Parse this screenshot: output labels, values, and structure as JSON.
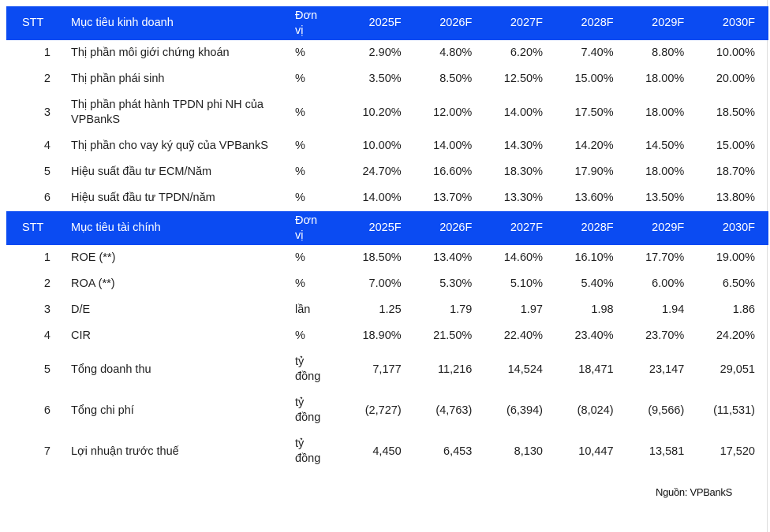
{
  "colors": {
    "header_bg": "#0b4bf2",
    "header_text": "#ffffff",
    "body_text": "#1f1f1f"
  },
  "source_note": "Nguồn: VPBankS",
  "tables": [
    {
      "id": "business-targets",
      "headers": {
        "stt": "STT",
        "target": "Mục tiêu kinh doanh",
        "unit": "Đơn vị",
        "years": [
          "2025F",
          "2026F",
          "2027F",
          "2028F",
          "2029F",
          "2030F"
        ]
      },
      "rows": [
        {
          "stt": "1",
          "target": "Thị phần môi giới chứng khoán",
          "unit": "%",
          "values": [
            "2.90%",
            "4.80%",
            "6.20%",
            "7.40%",
            "8.80%",
            "10.00%"
          ]
        },
        {
          "stt": "2",
          "target": "Thị phần phái sinh",
          "unit": "%",
          "values": [
            "3.50%",
            "8.50%",
            "12.50%",
            "15.00%",
            "18.00%",
            "20.00%"
          ]
        },
        {
          "stt": "3",
          "target": "Thị phần phát hành TPDN phi NH của VPBankS",
          "unit": "%",
          "values": [
            "10.20%",
            "12.00%",
            "14.00%",
            "17.50%",
            "18.00%",
            "18.50%"
          ]
        },
        {
          "stt": "4",
          "target": "Thị phần cho vay ký quỹ của VPBankS",
          "unit": "%",
          "values": [
            "10.00%",
            "14.00%",
            "14.30%",
            "14.20%",
            "14.50%",
            "15.00%"
          ]
        },
        {
          "stt": "5",
          "target": "Hiệu suất đầu tư ECM/Năm",
          "unit": "%",
          "values": [
            "24.70%",
            "16.60%",
            "18.30%",
            "17.90%",
            "18.00%",
            "18.70%"
          ]
        },
        {
          "stt": "6",
          "target": "Hiệu suất đầu tư TPDN/năm",
          "unit": "%",
          "values": [
            "14.00%",
            "13.70%",
            "13.30%",
            "13.60%",
            "13.50%",
            "13.80%"
          ]
        }
      ]
    },
    {
      "id": "financial-targets",
      "headers": {
        "stt": "STT",
        "target": "Mục tiêu tài chính",
        "unit": "Đơn vị",
        "years": [
          "2025F",
          "2026F",
          "2027F",
          "2028F",
          "2029F",
          "2030F"
        ]
      },
      "rows": [
        {
          "stt": "1",
          "target": "ROE (**)",
          "unit": "%",
          "values": [
            "18.50%",
            "13.40%",
            "14.60%",
            "16.10%",
            "17.70%",
            "19.00%"
          ]
        },
        {
          "stt": "2",
          "target": "ROA (**)",
          "unit": "%",
          "values": [
            "7.00%",
            "5.30%",
            "5.10%",
            "5.40%",
            "6.00%",
            "6.50%"
          ]
        },
        {
          "stt": "3",
          "target": "D/E",
          "unit": "lần",
          "values": [
            "1.25",
            "1.79",
            "1.97",
            "1.98",
            "1.94",
            "1.86"
          ]
        },
        {
          "stt": "4",
          "target": "CIR",
          "unit": "%",
          "values": [
            "18.90%",
            "21.50%",
            "22.40%",
            "23.40%",
            "23.70%",
            "24.20%"
          ]
        },
        {
          "stt": "5",
          "target": "Tổng doanh thu",
          "unit": "tỷ đồng",
          "values": [
            "7,177",
            "11,216",
            "14,524",
            "18,471",
            "23,147",
            "29,051"
          ]
        },
        {
          "stt": "6",
          "target": "Tổng chi phí",
          "unit": "tỷ đồng",
          "values": [
            "(2,727)",
            "(4,763)",
            "(6,394)",
            "(8,024)",
            "(9,566)",
            "(11,531)"
          ]
        },
        {
          "stt": "7",
          "target": "Lợi nhuận trước thuế",
          "unit": "tỷ đồng",
          "values": [
            "4,450",
            "6,453",
            "8,130",
            "10,447",
            "13,581",
            "17,520"
          ]
        }
      ]
    }
  ]
}
